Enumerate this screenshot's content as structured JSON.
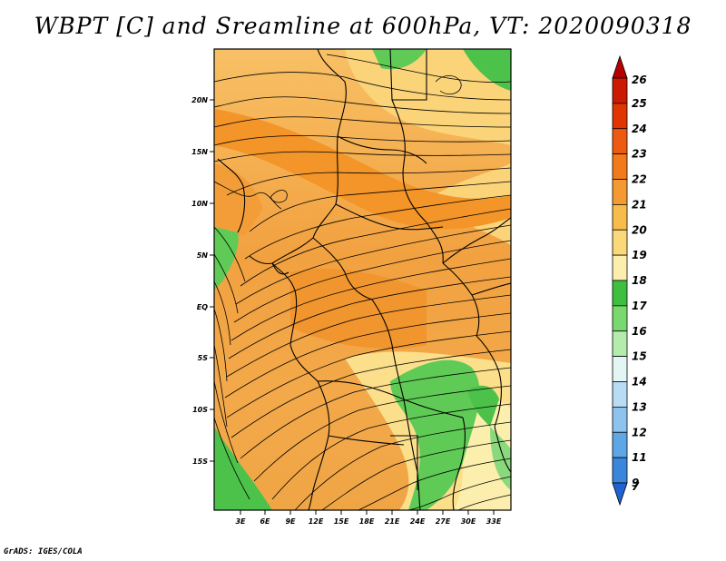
{
  "title": "WBPT [C] and Sreamline at 600hPa, VT: 2020090318",
  "credit": "GrADS: IGES/COLA",
  "map": {
    "lat_labels": [
      "20N",
      "15N",
      "10N",
      "5N",
      "EQ",
      "5S",
      "10S",
      "15S"
    ],
    "lon_labels": [
      "3E",
      "6E",
      "9E",
      "12E",
      "15E",
      "18E",
      "21E",
      "24E",
      "27E",
      "30E",
      "33E"
    ],
    "field": "WBPT",
    "units": "C",
    "level": "600hPa"
  },
  "colorbar": {
    "labels": [
      "26",
      "25",
      "24",
      "23",
      "22",
      "21",
      "20",
      "19",
      "18",
      "17",
      "16",
      "15",
      "14",
      "13",
      "12",
      "11",
      "9",
      "7"
    ],
    "colors": [
      "#b40000",
      "#cc1a00",
      "#e03500",
      "#ee5a10",
      "#f27a1a",
      "#f59a30",
      "#f8bc4a",
      "#fbd979",
      "#fcefad",
      "#3fbf40",
      "#79d86e",
      "#b5ecae",
      "#e3f6f3",
      "#b8dcf4",
      "#8ec3ee",
      "#5fa6e6",
      "#3a86dc",
      "#1f63d2"
    ]
  }
}
